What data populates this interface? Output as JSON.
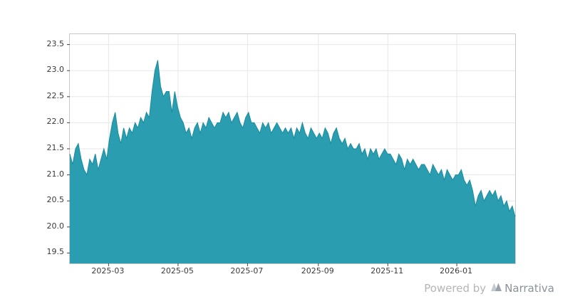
{
  "footer": {
    "powered_by": "Powered by",
    "brand": "Narrativa"
  },
  "chart_data": {
    "type": "area",
    "title": "",
    "xlabel": "",
    "ylabel": "",
    "series_color": "#2a9db0",
    "line_color": "#1a8c9f",
    "grid": true,
    "legend": "none",
    "x_range": [
      "2025-01-25",
      "2026-02-20"
    ],
    "ylim": [
      19.3,
      23.7
    ],
    "y_ticks": [
      19.5,
      20.0,
      20.5,
      21.0,
      21.5,
      22.0,
      22.5,
      23.0,
      23.5
    ],
    "x_ticks": [
      {
        "label": "2025-03",
        "pos": 0.087
      },
      {
        "label": "2025-05",
        "pos": 0.243
      },
      {
        "label": "2025-07",
        "pos": 0.399
      },
      {
        "label": "2025-09",
        "pos": 0.558
      },
      {
        "label": "2025-11",
        "pos": 0.714
      },
      {
        "label": "2026-01",
        "pos": 0.869
      }
    ],
    "values": [
      21.4,
      21.2,
      21.5,
      21.6,
      21.3,
      21.1,
      21.0,
      21.3,
      21.2,
      21.4,
      21.1,
      21.3,
      21.5,
      21.3,
      21.7,
      22.0,
      22.2,
      21.8,
      21.6,
      21.9,
      21.7,
      21.9,
      21.8,
      22.0,
      21.9,
      22.1,
      22.0,
      22.2,
      22.1,
      22.6,
      23.0,
      23.2,
      22.7,
      22.5,
      22.6,
      22.6,
      22.2,
      22.6,
      22.3,
      22.1,
      22.0,
      21.8,
      21.9,
      21.7,
      21.9,
      22.0,
      21.8,
      22.0,
      21.9,
      22.1,
      22.0,
      21.9,
      22.0,
      22.0,
      22.2,
      22.1,
      22.2,
      22.0,
      22.1,
      22.2,
      22.0,
      21.9,
      22.1,
      22.2,
      22.0,
      22.0,
      21.9,
      21.8,
      22.0,
      21.9,
      22.0,
      21.8,
      21.9,
      22.0,
      21.9,
      21.8,
      21.9,
      21.8,
      21.9,
      21.7,
      21.9,
      21.8,
      22.0,
      21.8,
      21.7,
      21.9,
      21.8,
      21.7,
      21.8,
      21.7,
      21.9,
      21.8,
      21.6,
      21.8,
      21.9,
      21.7,
      21.6,
      21.7,
      21.5,
      21.6,
      21.5,
      21.5,
      21.6,
      21.4,
      21.5,
      21.3,
      21.5,
      21.4,
      21.5,
      21.3,
      21.4,
      21.5,
      21.4,
      21.4,
      21.3,
      21.2,
      21.4,
      21.3,
      21.1,
      21.3,
      21.2,
      21.3,
      21.2,
      21.1,
      21.2,
      21.2,
      21.1,
      21.0,
      21.2,
      21.1,
      21.0,
      21.1,
      20.9,
      21.1,
      21.0,
      20.9,
      21.0,
      21.0,
      21.1,
      20.9,
      20.8,
      20.9,
      20.7,
      20.4,
      20.6,
      20.7,
      20.5,
      20.6,
      20.7,
      20.6,
      20.7,
      20.5,
      20.6,
      20.4,
      20.5,
      20.3,
      20.4,
      20.2
    ]
  }
}
